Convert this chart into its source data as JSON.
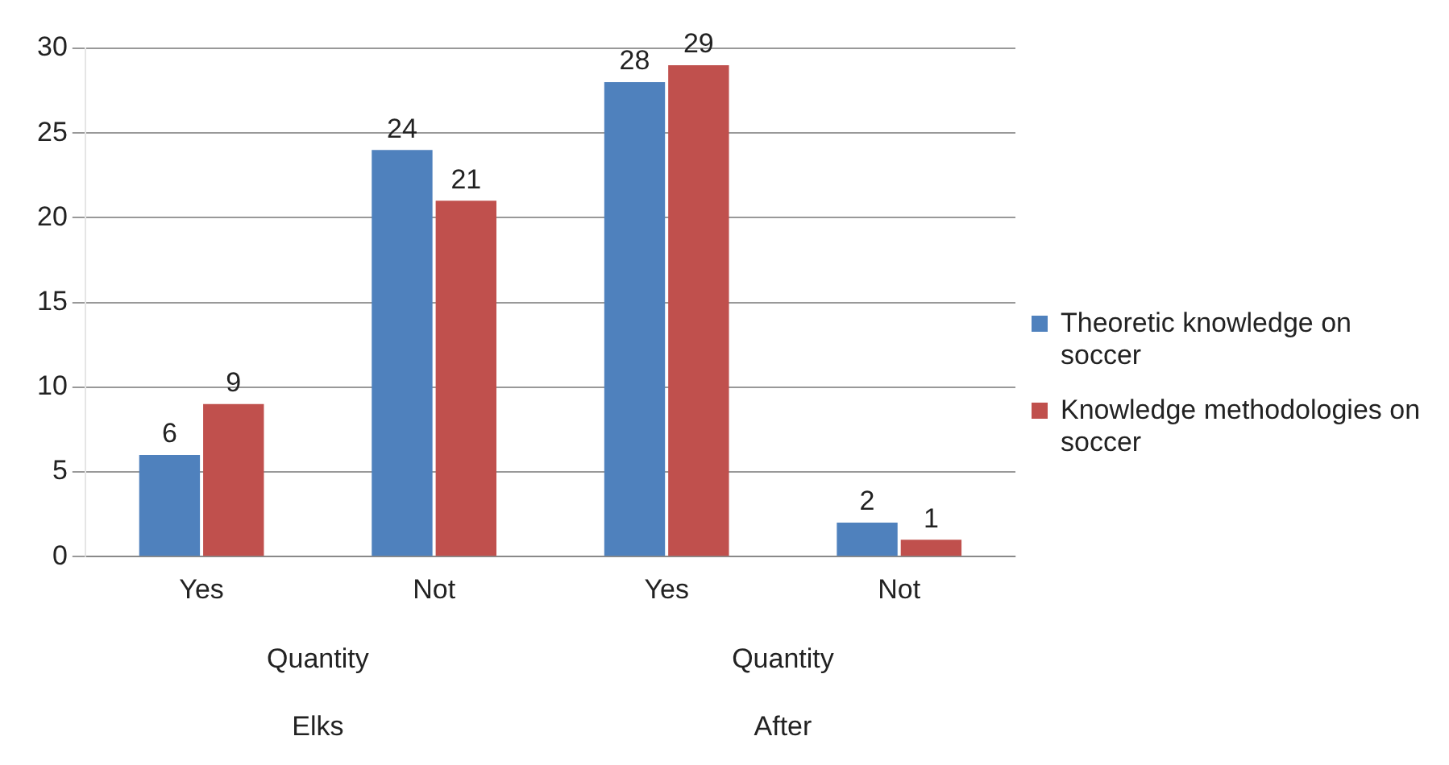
{
  "chart_data": {
    "type": "bar",
    "categories": [
      "Yes",
      "Not",
      "Yes",
      "Not"
    ],
    "series": [
      {
        "name": "Theoretic knowledge on soccer",
        "color": "#4f81bd",
        "values": [
          6,
          24,
          28,
          2
        ]
      },
      {
        "name": "Knowledge methodologies on soccer",
        "color": "#c0504d",
        "values": [
          9,
          21,
          29,
          1
        ]
      }
    ],
    "ylim": [
      0,
      30
    ],
    "yticks": [
      0,
      5,
      10,
      15,
      20,
      25,
      30
    ],
    "grid": "y",
    "legend": "right",
    "data_labels": true,
    "annotations": [
      "Quantity",
      "Quantity",
      "Elks",
      "After"
    ]
  }
}
